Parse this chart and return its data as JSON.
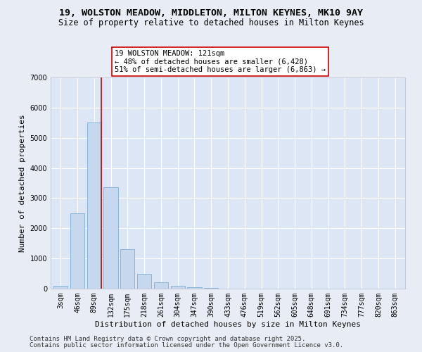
{
  "title_line1": "19, WOLSTON MEADOW, MIDDLETON, MILTON KEYNES, MK10 9AY",
  "title_line2": "Size of property relative to detached houses in Milton Keynes",
  "xlabel": "Distribution of detached houses by size in Milton Keynes",
  "ylabel": "Number of detached properties",
  "categories": [
    "3sqm",
    "46sqm",
    "89sqm",
    "132sqm",
    "175sqm",
    "218sqm",
    "261sqm",
    "304sqm",
    "347sqm",
    "390sqm",
    "433sqm",
    "476sqm",
    "519sqm",
    "562sqm",
    "605sqm",
    "648sqm",
    "691sqm",
    "734sqm",
    "777sqm",
    "820sqm",
    "863sqm"
  ],
  "values": [
    100,
    2500,
    5500,
    3350,
    1300,
    500,
    220,
    100,
    50,
    30,
    10,
    5,
    0,
    0,
    0,
    0,
    0,
    0,
    0,
    0,
    0
  ],
  "bar_color": "#c5d8ee",
  "bar_edge_color": "#7aadd4",
  "vline_x_index": 2.42,
  "vline_color": "#cc0000",
  "annotation_text": "19 WOLSTON MEADOW: 121sqm\n← 48% of detached houses are smaller (6,428)\n51% of semi-detached houses are larger (6,863) →",
  "annotation_box_color": "#ffffff",
  "annotation_box_edge": "#cc0000",
  "ylim": [
    0,
    7000
  ],
  "yticks": [
    0,
    1000,
    2000,
    3000,
    4000,
    5000,
    6000,
    7000
  ],
  "bg_color": "#e8edf5",
  "plot_bg_color": "#dce6f5",
  "grid_color": "#ffffff",
  "footer_line1": "Contains HM Land Registry data © Crown copyright and database right 2025.",
  "footer_line2": "Contains public sector information licensed under the Open Government Licence v3.0.",
  "title_fontsize": 9.5,
  "subtitle_fontsize": 8.5,
  "axis_label_fontsize": 8,
  "tick_fontsize": 7,
  "annotation_fontsize": 7.5,
  "footer_fontsize": 6.5
}
